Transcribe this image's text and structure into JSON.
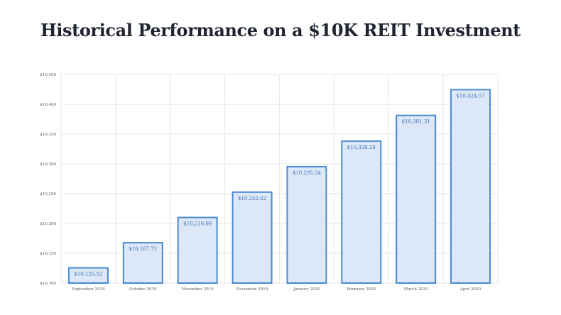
{
  "chart_data": {
    "type": "bar",
    "title": "Historical Performance on a $10K REIT Investment",
    "xlabel": "",
    "ylabel": "",
    "categories": [
      "September 2019",
      "October 2019",
      "November 2019",
      "December 2019",
      "January 2020",
      "February 2020",
      "March 2020",
      "April 2020"
    ],
    "values": [
      10125.52,
      10167.71,
      10210.08,
      10252.62,
      10295.34,
      10338.24,
      10381.31,
      10424.57
    ],
    "value_labels": [
      "$10,125.52",
      "$10,167.71",
      "$10,210.08",
      "$10,252.62",
      "$10,295.34",
      "$10,338.24",
      "$10,381.31",
      "$10,424.57"
    ],
    "ylim": [
      10100,
      10450
    ],
    "yticks": [
      10100,
      10150,
      10200,
      10250,
      10300,
      10350,
      10400,
      10450
    ],
    "ytick_labels": [
      "$10,100",
      "$10,150",
      "$10,200",
      "$10,250",
      "$10,300",
      "$10,350",
      "$10,400",
      "$10,450"
    ],
    "grid": true,
    "bar_fill": "#dce8f8",
    "bar_stroke": "#4a8ad4",
    "grid_color": "#e6e6e6"
  }
}
